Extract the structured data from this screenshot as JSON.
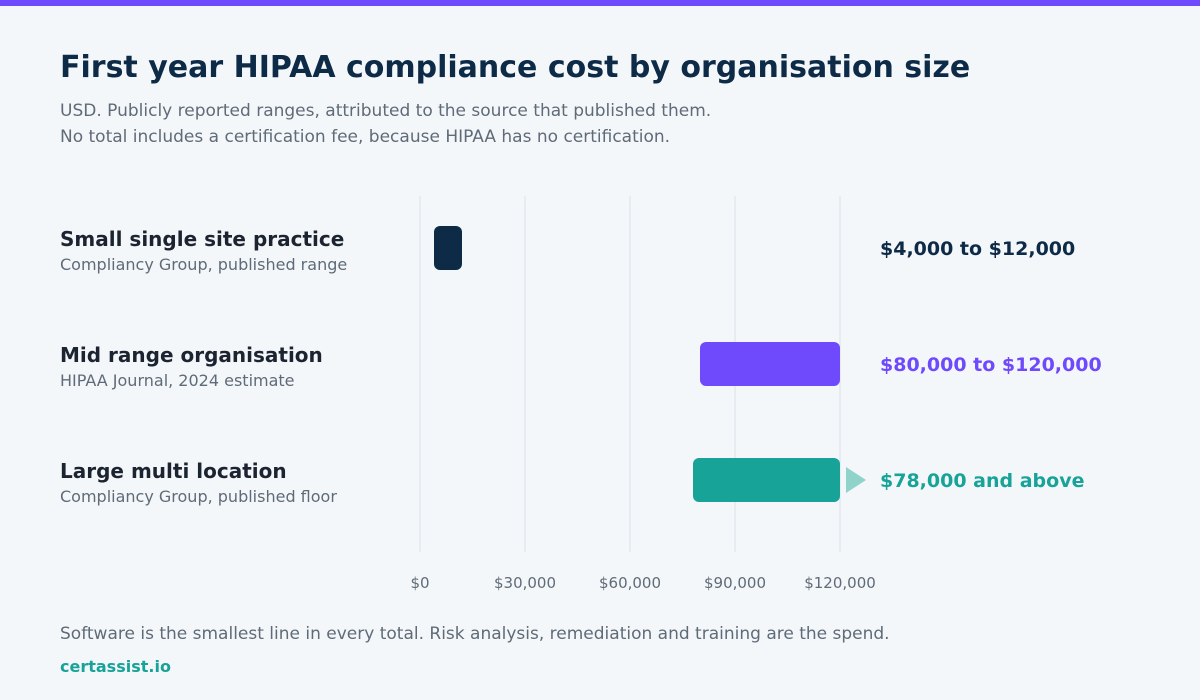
{
  "header": {
    "title": "First year HIPAA compliance cost by organisation size",
    "subtitle_line1": "USD. Publicly reported ranges, attributed to the source that published them.",
    "subtitle_line2": "No total includes a certification fee, because HIPAA has no certification."
  },
  "colors": {
    "accent": "#6e4afc",
    "title": "#0d2a47",
    "muted": "#5f6b78",
    "teal": "#17a398",
    "teal_light": "#8fd3cb",
    "grid": "#e2e8ee"
  },
  "chart_data": {
    "type": "bar",
    "orientation": "horizontal-range",
    "xlim": [
      0,
      120000
    ],
    "ticks": [
      0,
      30000,
      60000,
      90000,
      120000
    ],
    "tick_labels": [
      "$0",
      "$30,000",
      "$60,000",
      "$90,000",
      "$120,000"
    ],
    "grid": true,
    "rows": [
      {
        "label": "Small single site practice",
        "source": "Compliancy Group, published range",
        "min": 4000,
        "max": 12000,
        "value_label": "$4,000 to $12,000",
        "color": "#0d2a47",
        "open_ended": false
      },
      {
        "label": "Mid range organisation",
        "source": "HIPAA Journal, 2024 estimate",
        "min": 80000,
        "max": 120000,
        "value_label": "$80,000 to $120,000",
        "color": "#6e4afc",
        "open_ended": false
      },
      {
        "label": "Large multi location",
        "source": "Compliancy Group, published floor",
        "min": 78000,
        "max": null,
        "value_label": "$78,000 and above",
        "color": "#17a398",
        "open_ended": true
      }
    ]
  },
  "footer": {
    "note": "Software is the smallest line in every total. Risk analysis, remediation and training are the spend.",
    "brand": "certassist.io"
  }
}
